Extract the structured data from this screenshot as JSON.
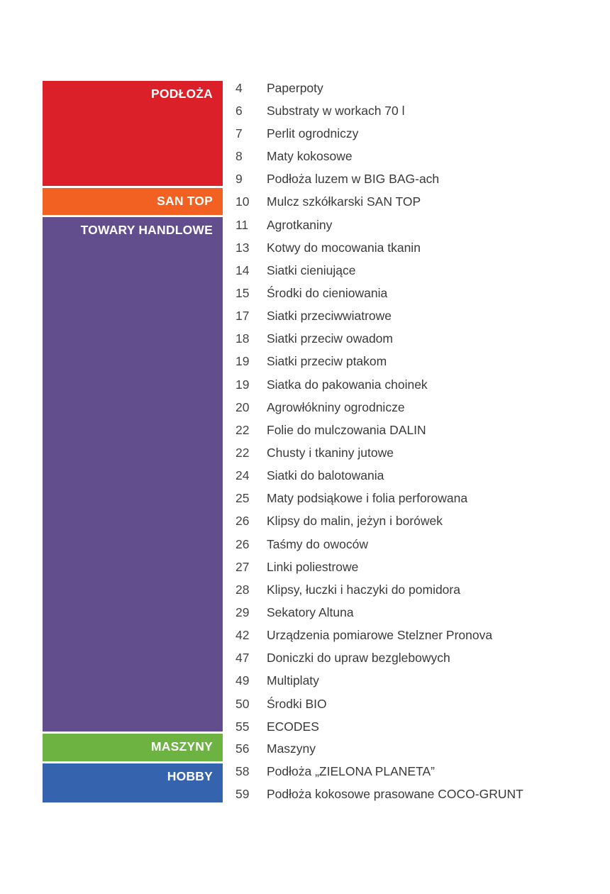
{
  "sections": [
    {
      "label": "PODŁOŻA",
      "color": "#dc2029"
    },
    {
      "label": "SAN TOP",
      "color": "#f26122"
    },
    {
      "label": "TOWARY HANDLOWE",
      "color": "#634e8d"
    },
    {
      "label": "MASZYNY",
      "color": "#6cb342"
    },
    {
      "label": "HOBBY",
      "color": "#3563ad"
    }
  ],
  "entries": [
    {
      "page": "4",
      "title": "Paperpoty"
    },
    {
      "page": "6",
      "title": "Substraty w workach 70 l"
    },
    {
      "page": "7",
      "title": "Perlit ogrodniczy"
    },
    {
      "page": "8",
      "title": "Maty kokosowe"
    },
    {
      "page": "9",
      "title": "Podłoża luzem w BIG BAG-ach"
    },
    {
      "page": "10",
      "title": "Mulcz szkółkarski SAN TOP"
    },
    {
      "page": "11",
      "title": "Agrotkaniny"
    },
    {
      "page": "13",
      "title": "Kotwy do mocowania tkanin"
    },
    {
      "page": "14",
      "title": "Siatki cieniujące"
    },
    {
      "page": "15",
      "title": "Środki do cieniowania"
    },
    {
      "page": "17",
      "title": "Siatki przeciwwiatrowe"
    },
    {
      "page": "18",
      "title": "Siatki przeciw owadom"
    },
    {
      "page": "19",
      "title": "Siatki przeciw ptakom"
    },
    {
      "page": "19",
      "title": "Siatka do pakowania choinek"
    },
    {
      "page": "20",
      "title": "Agrowłókniny ogrodnicze"
    },
    {
      "page": "22",
      "title": "Folie do mulczowania DALIN"
    },
    {
      "page": "22",
      "title": "Chusty i tkaniny jutowe"
    },
    {
      "page": "24",
      "title": "Siatki do balotowania"
    },
    {
      "page": "25",
      "title": "Maty podsiąkowe i folia perforowana"
    },
    {
      "page": "26",
      "title": "Klipsy do malin, jeżyn i borówek"
    },
    {
      "page": "26",
      "title": "Taśmy do owoców"
    },
    {
      "page": "27",
      "title": "Linki poliestrowe"
    },
    {
      "page": "28",
      "title": "Klipsy, łuczki i haczyki do pomidora"
    },
    {
      "page": "29",
      "title": "Sekatory Altuna"
    },
    {
      "page": "42",
      "title": "Urządzenia pomiarowe Stelzner Pronova"
    },
    {
      "page": "47",
      "title": "Doniczki do upraw bezglebowych"
    },
    {
      "page": "49",
      "title": "Multiplaty"
    },
    {
      "page": "50",
      "title": "Środki BIO"
    },
    {
      "page": "55",
      "title": "ECODES"
    },
    {
      "page": "56",
      "title": "Maszyny"
    },
    {
      "page": "58",
      "title": "Podłoża „ZIELONA PLANETA”"
    },
    {
      "page": "59",
      "title": "Podłoża kokosowe prasowane COCO-GRUNT"
    }
  ]
}
